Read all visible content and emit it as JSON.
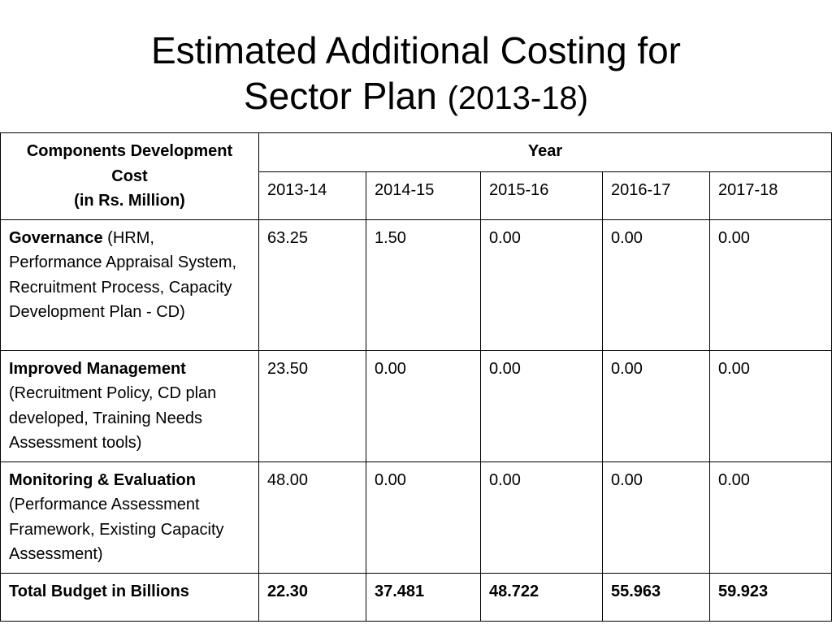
{
  "title": {
    "line1": "Estimated Additional Costing for",
    "line2": "Sector Plan",
    "years": "(2013-18)"
  },
  "table": {
    "header": {
      "components_line1": "Components Development",
      "components_line2": "Cost",
      "components_line3": "(in Rs. Million)",
      "year": "Year",
      "years": [
        "2013-14",
        "2014-15",
        "2015-16",
        "2016-17",
        "2017-18"
      ]
    },
    "rows": [
      {
        "name": "Governance",
        "detail": " (HRM, Performance Appraisal System,  Recruitment Process, Capacity Development Plan - CD)",
        "values": [
          "63.25",
          "1.50",
          "0.00",
          "0.00",
          "0.00"
        ]
      },
      {
        "name": "Improved Management",
        "detail": " (Recruitment Policy, CD plan developed, Training Needs Assessment tools)",
        "values": [
          "23.50",
          "0.00",
          "0.00",
          "0.00",
          "0.00"
        ]
      },
      {
        "name": "Monitoring & Evaluation",
        "detail": " (Performance Assessment Framework, Existing Capacity Assessment)",
        "values": [
          "48.00",
          "0.00",
          "0.00",
          "0.00",
          "0.00"
        ]
      }
    ],
    "total": {
      "label": "Total Budget in Billions",
      "values": [
        "22.30",
        "37.481",
        "48.722",
        "55.963",
        "59.923"
      ]
    }
  }
}
